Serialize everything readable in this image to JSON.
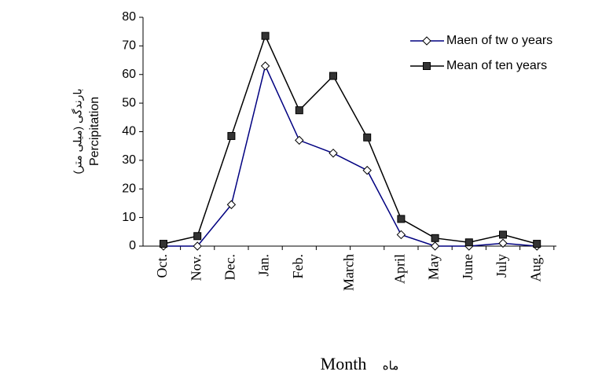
{
  "chart_data": {
    "type": "line",
    "y_label": [
      "بارندگی (میلی متر)",
      "Percipitation"
    ],
    "x_label": [
      "Month",
      "ماه"
    ],
    "categories": [
      "Oct.",
      "Nov.",
      "Dec.",
      "Jan.",
      "Feb.",
      "March",
      null,
      "April",
      "May",
      "June",
      "July",
      "Aug."
    ],
    "series": [
      {
        "name": "Maen of tw o years",
        "color": "#000080",
        "marker": "diamond",
        "values": [
          0,
          0,
          14.5,
          63,
          37,
          32.5,
          26.5,
          4,
          0,
          0,
          1,
          0
        ]
      },
      {
        "name": "Mean of ten years",
        "color": "#000000",
        "marker": "square",
        "values": [
          0.8,
          3.5,
          38.5,
          73.5,
          47.5,
          59.5,
          38,
          9.5,
          2.8,
          1.3,
          4,
          0.8
        ]
      }
    ],
    "ylim": [
      0,
      80
    ],
    "yticks": [
      0,
      10,
      20,
      30,
      40,
      50,
      60,
      70,
      80
    ],
    "grid": false,
    "legend": "top-right"
  }
}
